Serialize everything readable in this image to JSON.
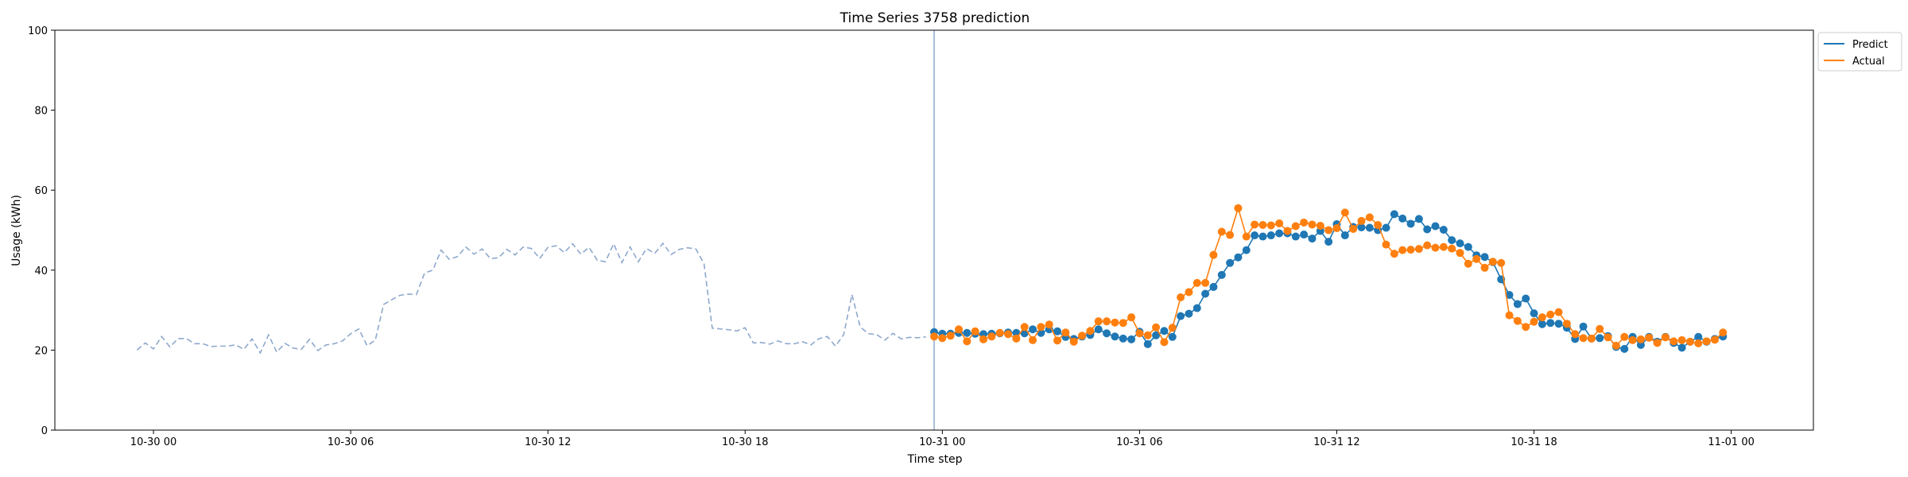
{
  "chart_data": {
    "type": "line",
    "title": "Time Series 3758 prediction",
    "xlabel": "Time step",
    "ylabel": "Usage (kWh)",
    "ylim": [
      0,
      100
    ],
    "yticks": [
      0,
      20,
      40,
      60,
      80,
      100
    ],
    "xlim_hours": [
      -3,
      50.5
    ],
    "xticks": [
      {
        "hour": 0,
        "label": "10-30 00"
      },
      {
        "hour": 6,
        "label": "10-30 06"
      },
      {
        "hour": 12,
        "label": "10-30 12"
      },
      {
        "hour": 18,
        "label": "10-30 18"
      },
      {
        "hour": 24,
        "label": "10-31 00"
      },
      {
        "hour": 30,
        "label": "10-31 06"
      },
      {
        "hour": 36,
        "label": "10-31 12"
      },
      {
        "hour": 42,
        "label": "10-31 18"
      },
      {
        "hour": 48,
        "label": "11-01 00"
      }
    ],
    "step_hours": 0.25,
    "history_start_hour": -0.5,
    "forecast_start_hour": 23.75,
    "divider_hour": 23.75,
    "history": {
      "name": "History",
      "color": "#8ea8cc",
      "values": [
        20.0,
        21.8,
        20.3,
        23.4,
        20.8,
        22.9,
        22.9,
        21.6,
        21.6,
        20.9,
        21.0,
        21.0,
        21.3,
        20.2,
        22.8,
        19.3,
        23.8,
        19.5,
        21.7,
        20.5,
        20.2,
        22.7,
        19.9,
        21.3,
        21.6,
        22.3,
        24.1,
        25.3,
        21.1,
        22.5,
        31.4,
        32.6,
        33.7,
        34.0,
        33.9,
        39.3,
        40.0,
        45.0,
        42.7,
        43.4,
        45.8,
        44.0,
        45.3,
        42.9,
        43.1,
        45.2,
        43.8,
        45.8,
        45.4,
        42.9,
        45.7,
        46.1,
        44.4,
        46.6,
        44.0,
        45.7,
        42.5,
        42.1,
        46.6,
        41.9,
        45.8,
        42.1,
        45.4,
        44.2,
        46.7,
        43.9,
        45.2,
        45.6,
        45.3,
        41.6,
        25.5,
        25.3,
        25.1,
        24.8,
        25.6,
        21.8,
        21.9,
        21.5,
        22.3,
        21.6,
        21.6,
        22.1,
        21.3,
        22.9,
        23.4,
        21.0,
        23.9,
        33.9,
        25.8,
        24.1,
        23.9,
        22.5,
        24.2,
        22.8,
        23.2,
        23.1,
        23.3
      ]
    },
    "series": [
      {
        "name": "Predict",
        "color": "#1f77b4",
        "values": [
          24.5,
          24.1,
          24.1,
          24.3,
          24.3,
          24.1,
          24.0,
          24.1,
          24.2,
          24.4,
          24.3,
          24.2,
          25.2,
          24.3,
          25.2,
          24.7,
          23.3,
          22.8,
          23.4,
          23.8,
          25.2,
          24.2,
          23.4,
          22.9,
          22.7,
          24.6,
          21.5,
          23.7,
          24.8,
          23.3,
          28.5,
          29.1,
          30.5,
          34.1,
          35.8,
          38.8,
          41.8,
          43.2,
          45.0,
          48.7,
          48.4,
          48.7,
          49.2,
          49.2,
          48.4,
          48.9,
          47.9,
          49.8,
          47.1,
          51.5,
          48.7,
          50.8,
          50.7,
          50.6,
          50.0,
          50.6,
          54.0,
          52.9,
          51.6,
          52.8,
          50.2,
          51.0,
          50.1,
          47.5,
          46.7,
          45.8,
          43.7,
          43.3,
          42.0,
          37.7,
          33.8,
          31.5,
          32.9,
          29.2,
          26.5,
          26.8,
          26.6,
          25.6,
          22.8,
          25.9,
          22.9,
          23.0,
          23.5,
          20.8,
          20.3,
          23.3,
          21.3,
          23.3,
          22.1,
          23.3,
          21.8,
          20.6,
          22.1,
          23.3,
          22.1,
          22.8,
          23.4
        ]
      },
      {
        "name": "Actual",
        "color": "#ff7f0e",
        "values": [
          23.4,
          23.0,
          23.6,
          25.2,
          22.2,
          24.7,
          22.7,
          23.4,
          24.3,
          24.0,
          22.9,
          25.8,
          22.5,
          25.8,
          26.4,
          22.4,
          24.4,
          22.1,
          23.6,
          24.8,
          27.2,
          27.2,
          26.9,
          26.8,
          28.2,
          24.2,
          23.7,
          25.7,
          22.0,
          25.6,
          33.2,
          34.5,
          36.8,
          36.8,
          43.8,
          49.6,
          48.8,
          55.5,
          48.4,
          51.4,
          51.3,
          51.2,
          51.7,
          49.8,
          51.0,
          51.9,
          51.4,
          51.1,
          50.0,
          50.5,
          54.4,
          50.3,
          52.3,
          53.2,
          51.3,
          46.4,
          44.1,
          45.0,
          45.1,
          45.3,
          46.2,
          45.6,
          45.8,
          45.4,
          44.3,
          41.6,
          42.8,
          40.6,
          42.1,
          41.8,
          28.7,
          27.3,
          25.8,
          27.1,
          28.2,
          28.9,
          29.5,
          26.6,
          24.0,
          23.0,
          22.9,
          25.3,
          23.2,
          21.1,
          23.3,
          22.5,
          22.7,
          23.1,
          21.8,
          23.2,
          22.2,
          22.5,
          22.1,
          21.7,
          22.2,
          22.6,
          24.4
        ]
      }
    ],
    "legend": {
      "position": "upper right outside",
      "entries": [
        "Predict",
        "Actual"
      ]
    }
  }
}
